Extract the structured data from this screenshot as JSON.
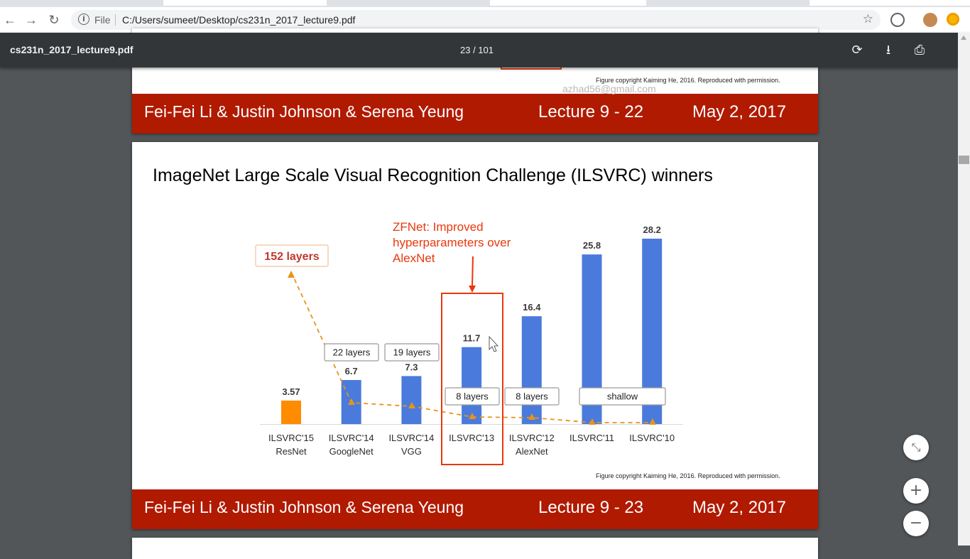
{
  "browser": {
    "file_label": "File",
    "url": "C:/Users/sumeet/Desktop/cs231n_2017_lecture9.pdf"
  },
  "pdf_toolbar": {
    "filename": "cs231n_2017_lecture9.pdf",
    "page_indicator": "23 / 101"
  },
  "watermark": "azhad56@gmail.com",
  "slide_prev": {
    "copyright": "Figure copyright Kaiming He, 2016. Reproduced with permission.",
    "footer_names": "Fei-Fei Li & Justin Johnson & Serena Yeung",
    "footer_lecture": "Lecture 9 - 22",
    "footer_date": "May 2, 2017"
  },
  "slide": {
    "title": "ImageNet Large Scale Visual Recognition Challenge (ILSVRC) winners",
    "copyright": "Figure copyright Kaiming He, 2016. Reproduced with permission.",
    "footer_names": "Fei-Fei Li & Justin Johnson & Serena Yeung",
    "footer_lecture": "Lecture 9 - 23",
    "footer_date": "May 2, 2017"
  },
  "chart_data": {
    "type": "bar",
    "title": "",
    "xlabel": "",
    "ylabel": "",
    "categories": [
      [
        "ILSVRC'15",
        "ResNet"
      ],
      [
        "ILSVRC'14",
        "GoogleNet"
      ],
      [
        "ILSVRC'14",
        "VGG"
      ],
      [
        "ILSVRC'13"
      ],
      [
        "ILSVRC'12",
        "AlexNet"
      ],
      [
        "ILSVRC'11"
      ],
      [
        "ILSVRC'10"
      ]
    ],
    "values": [
      3.57,
      6.7,
      7.3,
      11.7,
      16.4,
      25.8,
      28.2
    ],
    "value_labels": [
      "3.57",
      "6.7",
      "7.3",
      "11.7",
      "16.4",
      "25.8",
      "28.2"
    ],
    "bar_colors": [
      "#ff8c00",
      "#4a7bdc",
      "#4a7bdc",
      "#4a7bdc",
      "#4a7bdc",
      "#4a7bdc",
      "#4a7bdc"
    ],
    "ylim": [
      0,
      28.2
    ],
    "grid": false,
    "layer_boxes": [
      {
        "text": "152 layers",
        "highlight": true
      },
      {
        "text": "22 layers"
      },
      {
        "text": "19 layers"
      },
      {
        "text": "8 layers"
      },
      {
        "text": "8 layers"
      },
      {
        "text": "shallow"
      }
    ],
    "annotation": {
      "lines": [
        "ZFNet: Improved",
        "hyperparameters over",
        "AlexNet"
      ],
      "color": "#e8380d",
      "target": "ILSVRC'13"
    },
    "trend_color": "#e8931c"
  }
}
